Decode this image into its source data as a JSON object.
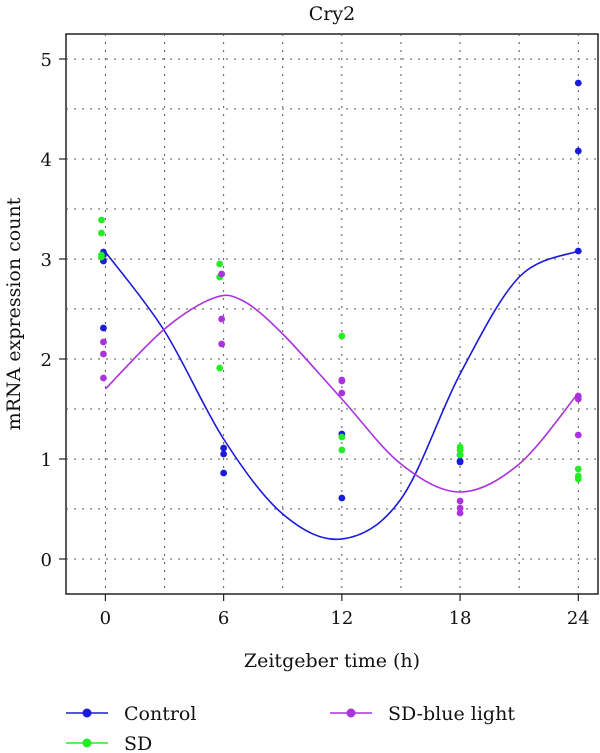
{
  "chart_data": {
    "type": "scatter",
    "title": "Cry2",
    "xlabel": "Zeitgeber time (h)",
    "ylabel": "mRNA expression count",
    "xlim": [
      -2,
      25
    ],
    "ylim": [
      -0.35,
      5.25
    ],
    "x_ticks": [
      0,
      6,
      12,
      18,
      24
    ],
    "y_ticks": [
      0,
      1,
      2,
      3,
      4,
      5
    ],
    "grid": true,
    "legend_position": "bottom",
    "series": [
      {
        "name": "Control",
        "color": "#1a1adb",
        "points": [
          [
            -0.1,
            3.07
          ],
          [
            -0.1,
            3.04
          ],
          [
            -0.1,
            2.98
          ],
          [
            -0.1,
            2.31
          ],
          [
            6,
            1.11
          ],
          [
            6,
            1.05
          ],
          [
            6,
            0.86
          ],
          [
            12,
            1.25
          ],
          [
            12,
            0.61
          ],
          [
            18,
            1.04
          ],
          [
            18,
            0.98
          ],
          [
            18,
            0.97
          ],
          [
            24,
            4.76
          ],
          [
            24,
            4.08
          ],
          [
            24,
            3.08
          ]
        ],
        "fit": [
          [
            0,
            3.07
          ],
          [
            3,
            2.28
          ],
          [
            6,
            1.2
          ],
          [
            9,
            0.45
          ],
          [
            12,
            0.2
          ],
          [
            15,
            0.6
          ],
          [
            18,
            1.85
          ],
          [
            21,
            2.82
          ],
          [
            24,
            3.08
          ]
        ]
      },
      {
        "name": "SD",
        "color": "#22ee22",
        "points": [
          [
            -0.2,
            3.39
          ],
          [
            -0.2,
            3.26
          ],
          [
            -0.2,
            3.04
          ],
          [
            -0.2,
            3.02
          ],
          [
            5.8,
            2.95
          ],
          [
            5.8,
            2.82
          ],
          [
            5.8,
            1.91
          ],
          [
            12,
            2.23
          ],
          [
            12,
            1.22
          ],
          [
            12,
            1.09
          ],
          [
            18,
            1.12
          ],
          [
            18,
            1.09
          ],
          [
            18,
            1.04
          ],
          [
            24,
            0.9
          ],
          [
            24,
            0.83
          ],
          [
            24,
            0.8
          ]
        ]
      },
      {
        "name": "SD-blue light",
        "color": "#aa33dd",
        "points": [
          [
            -0.1,
            2.17
          ],
          [
            -0.1,
            2.05
          ],
          [
            -0.1,
            1.81
          ],
          [
            5.9,
            2.85
          ],
          [
            5.9,
            2.4
          ],
          [
            5.9,
            2.15
          ],
          [
            12,
            1.79
          ],
          [
            12,
            1.78
          ],
          [
            12,
            1.66
          ],
          [
            18,
            0.58
          ],
          [
            18,
            0.51
          ],
          [
            18,
            0.46
          ],
          [
            24,
            1.63
          ],
          [
            24,
            1.6
          ],
          [
            24,
            1.24
          ]
        ],
        "fit": [
          [
            0,
            1.7
          ],
          [
            3,
            2.3
          ],
          [
            5.5,
            2.61
          ],
          [
            7,
            2.58
          ],
          [
            9,
            2.25
          ],
          [
            12,
            1.6
          ],
          [
            15,
            0.95
          ],
          [
            18,
            0.67
          ],
          [
            21,
            0.95
          ],
          [
            24,
            1.66
          ]
        ]
      }
    ]
  }
}
